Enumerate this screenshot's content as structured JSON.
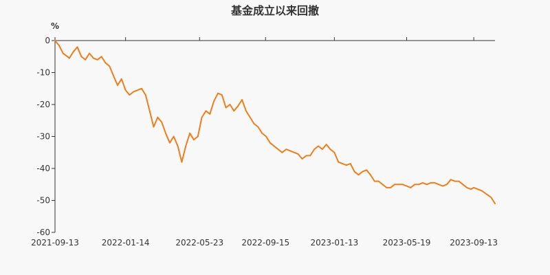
{
  "title": "基金成立以来回撤",
  "chart_data": {
    "type": "line",
    "title": "基金成立以来回撤",
    "ylabel": "%",
    "xlabel": "",
    "ylim": [
      -60,
      0
    ],
    "yticks": [
      0,
      -10,
      -20,
      -30,
      -40,
      -50,
      -60
    ],
    "ytick_labels": [
      "0",
      "-10",
      "-20",
      "-30",
      "-40",
      "-50",
      "-60"
    ],
    "xlim": [
      "2021-09-13",
      "2023-10-20"
    ],
    "xticks": [
      "2021-09-13",
      "2022-01-14",
      "2022-05-23",
      "2022-09-15",
      "2023-01-13",
      "2023-05-19",
      "2023-09-13"
    ],
    "grid": false,
    "color": "#f07d1b",
    "series": [
      {
        "name": "",
        "x": [
          "2021-09-13",
          "2021-09-20",
          "2021-09-27",
          "2021-10-08",
          "2021-10-15",
          "2021-10-22",
          "2021-10-29",
          "2021-11-05",
          "2021-11-12",
          "2021-11-19",
          "2021-11-26",
          "2021-12-03",
          "2021-12-10",
          "2021-12-17",
          "2021-12-24",
          "2021-12-31",
          "2022-01-07",
          "2022-01-14",
          "2022-01-21",
          "2022-01-28",
          "2022-02-11",
          "2022-02-18",
          "2022-02-25",
          "2022-03-04",
          "2022-03-11",
          "2022-03-18",
          "2022-03-25",
          "2022-04-01",
          "2022-04-08",
          "2022-04-15",
          "2022-04-22",
          "2022-04-29",
          "2022-05-06",
          "2022-05-13",
          "2022-05-20",
          "2022-05-27",
          "2022-06-03",
          "2022-06-10",
          "2022-06-17",
          "2022-06-24",
          "2022-07-01",
          "2022-07-08",
          "2022-07-15",
          "2022-07-22",
          "2022-07-29",
          "2022-08-05",
          "2022-08-12",
          "2022-08-19",
          "2022-08-26",
          "2022-09-02",
          "2022-09-09",
          "2022-09-16",
          "2022-09-23",
          "2022-09-30",
          "2022-10-14",
          "2022-10-21",
          "2022-10-28",
          "2022-11-04",
          "2022-11-11",
          "2022-11-18",
          "2022-11-25",
          "2022-12-02",
          "2022-12-09",
          "2022-12-16",
          "2022-12-23",
          "2022-12-30",
          "2023-01-06",
          "2023-01-13",
          "2023-01-20",
          "2023-02-03",
          "2023-02-10",
          "2023-02-17",
          "2023-02-24",
          "2023-03-03",
          "2023-03-10",
          "2023-03-17",
          "2023-03-24",
          "2023-03-31",
          "2023-04-07",
          "2023-04-14",
          "2023-04-21",
          "2023-04-28",
          "2023-05-05",
          "2023-05-12",
          "2023-05-19",
          "2023-05-26",
          "2023-06-02",
          "2023-06-09",
          "2023-06-16",
          "2023-06-23",
          "2023-06-30",
          "2023-07-07",
          "2023-07-14",
          "2023-07-21",
          "2023-07-28",
          "2023-08-04",
          "2023-08-11",
          "2023-08-18",
          "2023-08-25",
          "2023-09-01",
          "2023-09-08",
          "2023-09-13",
          "2023-09-20",
          "2023-09-27",
          "2023-10-13",
          "2023-10-20"
        ],
        "values": [
          0,
          -1.5,
          -4,
          -5.5,
          -3.5,
          -2,
          -5,
          -6,
          -4,
          -5.5,
          -6,
          -5,
          -7,
          -8,
          -11,
          -14,
          -12,
          -15.5,
          -17,
          -16,
          -15,
          -17,
          -22,
          -27,
          -24,
          -25.5,
          -29,
          -32,
          -30,
          -33,
          -38,
          -33,
          -29,
          -31,
          -30,
          -24,
          -22,
          -23,
          -19,
          -16.5,
          -17,
          -21,
          -20,
          -22,
          -20.5,
          -18.5,
          -22,
          -24,
          -26,
          -27,
          -29,
          -30,
          -32,
          -33,
          -35,
          -34,
          -34.5,
          -35,
          -35.5,
          -37,
          -36,
          -36,
          -34,
          -33,
          -34,
          -32.5,
          -34,
          -35,
          -38,
          -39,
          -38.5,
          -41,
          -42,
          -41,
          -40.5,
          -42,
          -44,
          -44,
          -45,
          -46,
          -46,
          -45,
          -45,
          -45,
          -45.5,
          -46,
          -45,
          -45,
          -44.5,
          -45,
          -44.5,
          -44.5,
          -45,
          -45.5,
          -45,
          -43.5,
          -44,
          -44,
          -45,
          -46,
          -46.5,
          -46,
          -46.5,
          -47,
          -49,
          -51
        ]
      }
    ]
  }
}
